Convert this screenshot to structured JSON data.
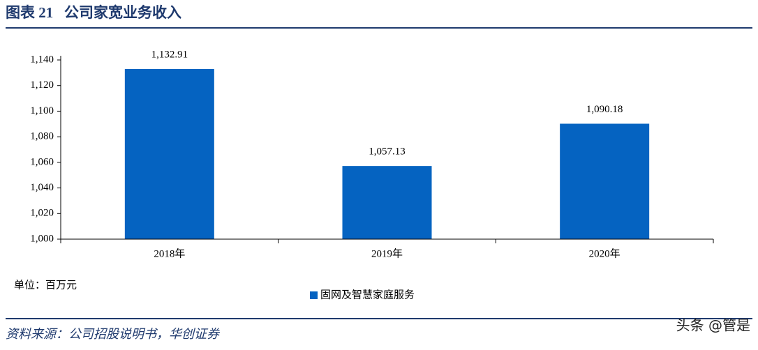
{
  "chart_data": {
    "type": "bar",
    "title": "图表 21   公司家宽业务收入",
    "categories": [
      "2018年",
      "2019年",
      "2020年"
    ],
    "series": [
      {
        "name": "固网及智慧家庭服务",
        "color": "#0563C1",
        "values": [
          1132.91,
          1057.13,
          1090.18
        ],
        "value_labels": [
          "1,132.91",
          "1,057.13",
          "1,090.18"
        ]
      }
    ],
    "ylim": [
      1000,
      1140
    ],
    "yticks": [
      {
        "value": 1000,
        "label": "1,000"
      },
      {
        "value": 1020,
        "label": "1,020"
      },
      {
        "value": 1040,
        "label": "1,040"
      },
      {
        "value": 1060,
        "label": "1,060"
      },
      {
        "value": 1080,
        "label": "1,080"
      },
      {
        "value": 1100,
        "label": "1,100"
      },
      {
        "value": 1120,
        "label": "1,120"
      },
      {
        "value": 1140,
        "label": "1,140"
      }
    ],
    "unit_note": "单位：百万元",
    "source": "资料来源：公司招股说明书，华创证券",
    "watermark": "头条 @管是"
  }
}
